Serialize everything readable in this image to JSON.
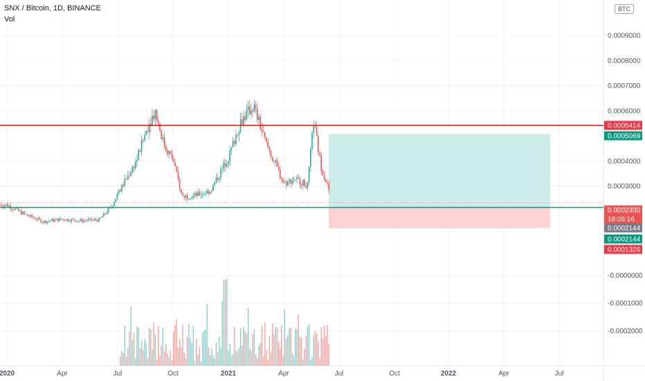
{
  "header": {
    "symbol": "SNX / Bitcoin, 1D, BINANCE",
    "volume_label": "Vol"
  },
  "currency_button": "BTC",
  "colors": {
    "up": "#26a69a",
    "down": "#ef5350",
    "resistance": "#ff0000",
    "support": "#089981",
    "profit_zone": "#cbece8",
    "loss_zone": "#ffd2d2",
    "grid": "#f0f3fa",
    "axis_text": "#50535e"
  },
  "chart_data": {
    "type": "candlestick",
    "title": "SNX / Bitcoin, 1D, BINANCE",
    "price_axis": {
      "ticks": [
        "0.0009000",
        "0.0008000",
        "0.0007000",
        "0.0006000",
        "0.0004000",
        "0.0003000"
      ],
      "range": [
        0.0001,
        0.00095
      ]
    },
    "volume_axis": {
      "ticks": [
        "-0.0000000",
        "-0.0001000",
        "-0.0002000"
      ]
    },
    "time_axis": [
      "2020",
      "Apr",
      "Jul",
      "Oct",
      "2021",
      "Apr",
      "Jul",
      "Oct",
      "2022",
      "Apr",
      "Jul"
    ],
    "price_series": [
      [
        "2020-01",
        0.000225
      ],
      [
        "2020-02",
        0.000185
      ],
      [
        "2020-03",
        0.000158
      ],
      [
        "2020-04",
        0.000168
      ],
      [
        "2020-05",
        0.000162
      ],
      [
        "2020-06",
        0.000165
      ],
      [
        "2020-06-20",
        0.000215
      ],
      [
        "2020-07",
        0.000265
      ],
      [
        "2020-08-01",
        0.0004
      ],
      [
        "2020-08-20",
        0.00054
      ],
      [
        "2020-09-01",
        0.0006
      ],
      [
        "2020-09-15",
        0.00047
      ],
      [
        "2020-10-01",
        0.0004
      ],
      [
        "2020-10-15",
        0.00026
      ],
      [
        "2020-11-01",
        0.00026
      ],
      [
        "2020-12-01",
        0.00028
      ],
      [
        "2021-01-01",
        0.00042
      ],
      [
        "2021-01-20",
        0.00056
      ],
      [
        "2021-02-10",
        0.00062
      ],
      [
        "2021-03-01",
        0.00048
      ],
      [
        "2021-04-01",
        0.00031
      ],
      [
        "2021-04-20",
        0.00033
      ],
      [
        "2021-05-10",
        0.0003
      ],
      [
        "2021-05-20",
        0.000555
      ],
      [
        "2021-06-01",
        0.00038
      ],
      [
        "2021-06-20",
        0.00024
      ]
    ],
    "horizontal_lines": [
      {
        "label": "0.0005414",
        "value": 0.0005414
      },
      {
        "label": "0.0002144",
        "value": 0.0002144
      }
    ],
    "position": {
      "entry": "0.0002144",
      "target": "0.0005069",
      "stop": "0.0001326"
    },
    "price_labels": [
      {
        "text": "0.0005414",
        "value": 0.0005414,
        "kind": "resistance"
      },
      {
        "text": "0.0005069",
        "value": 0.0005069,
        "kind": "target"
      },
      {
        "text": "0.0002330",
        "value": 0.000233,
        "kind": "last"
      },
      {
        "text": "18:06:16",
        "value": 0.000223,
        "kind": "countdown"
      },
      {
        "text": "0.0002144",
        "value": 0.0002144,
        "kind": "entry-gray"
      },
      {
        "text": "0.0002144",
        "value": 0.0002144,
        "kind": "entry"
      },
      {
        "text": "0.0001326",
        "value": 0.0001326,
        "kind": "stop"
      }
    ]
  }
}
